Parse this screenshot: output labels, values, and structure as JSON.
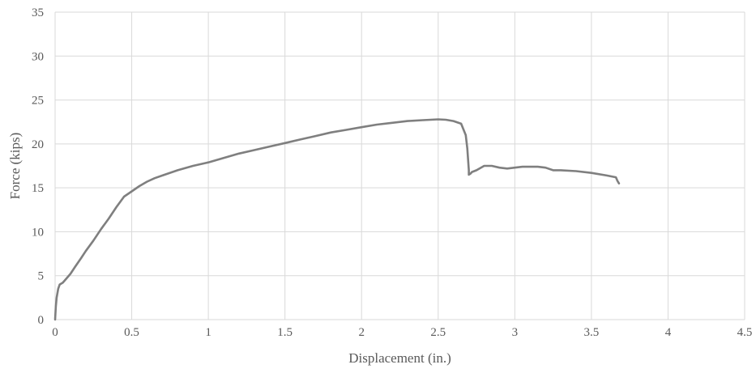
{
  "chart_data": {
    "type": "line",
    "title": "",
    "xlabel": "Displacement (in.)",
    "ylabel": "Force (kips)",
    "xlim": [
      0,
      4.5
    ],
    "ylim": [
      0,
      35
    ],
    "x_ticks": [
      "0",
      "0.5",
      "1",
      "1.5",
      "2",
      "2.5",
      "3",
      "3.5",
      "4",
      "4.5"
    ],
    "y_ticks": [
      "0",
      "5",
      "10",
      "15",
      "20",
      "25",
      "30",
      "35"
    ],
    "grid": true,
    "legend": "none",
    "colors": {
      "series": "#7f7f7f",
      "grid": "#d9d9d9",
      "text": "#595959"
    },
    "series": [
      {
        "x": [
          0,
          0.005,
          0.01,
          0.02,
          0.03,
          0.05,
          0.07,
          0.1,
          0.13,
          0.17,
          0.2,
          0.25,
          0.3,
          0.35,
          0.4,
          0.45,
          0.5,
          0.55,
          0.6,
          0.65,
          0.7,
          0.8,
          0.9,
          1.0,
          1.1,
          1.2,
          1.3,
          1.4,
          1.5,
          1.6,
          1.7,
          1.8,
          1.9,
          2.0,
          2.1,
          2.2,
          2.3,
          2.4,
          2.5,
          2.55,
          2.6,
          2.65,
          2.68,
          2.69,
          2.7,
          2.7,
          2.71,
          2.72,
          2.75,
          2.8,
          2.85,
          2.9,
          2.95,
          3.0,
          3.05,
          3.1,
          3.15,
          3.2,
          3.25,
          3.3,
          3.4,
          3.5,
          3.6,
          3.66,
          3.67,
          3.68
        ],
        "y": [
          0,
          1.5,
          2.5,
          3.5,
          4.0,
          4.2,
          4.6,
          5.2,
          6.0,
          7.0,
          7.8,
          9.0,
          10.3,
          11.5,
          12.8,
          14.0,
          14.6,
          15.2,
          15.7,
          16.1,
          16.4,
          17.0,
          17.5,
          17.9,
          18.4,
          18.9,
          19.3,
          19.7,
          20.1,
          20.5,
          20.9,
          21.3,
          21.6,
          21.9,
          22.2,
          22.4,
          22.6,
          22.7,
          22.8,
          22.75,
          22.6,
          22.3,
          21.0,
          19.5,
          17.0,
          16.5,
          16.6,
          16.8,
          17.0,
          17.5,
          17.5,
          17.3,
          17.2,
          17.3,
          17.4,
          17.4,
          17.4,
          17.3,
          17.0,
          17.0,
          16.9,
          16.7,
          16.4,
          16.2,
          15.8,
          15.5
        ]
      }
    ]
  }
}
